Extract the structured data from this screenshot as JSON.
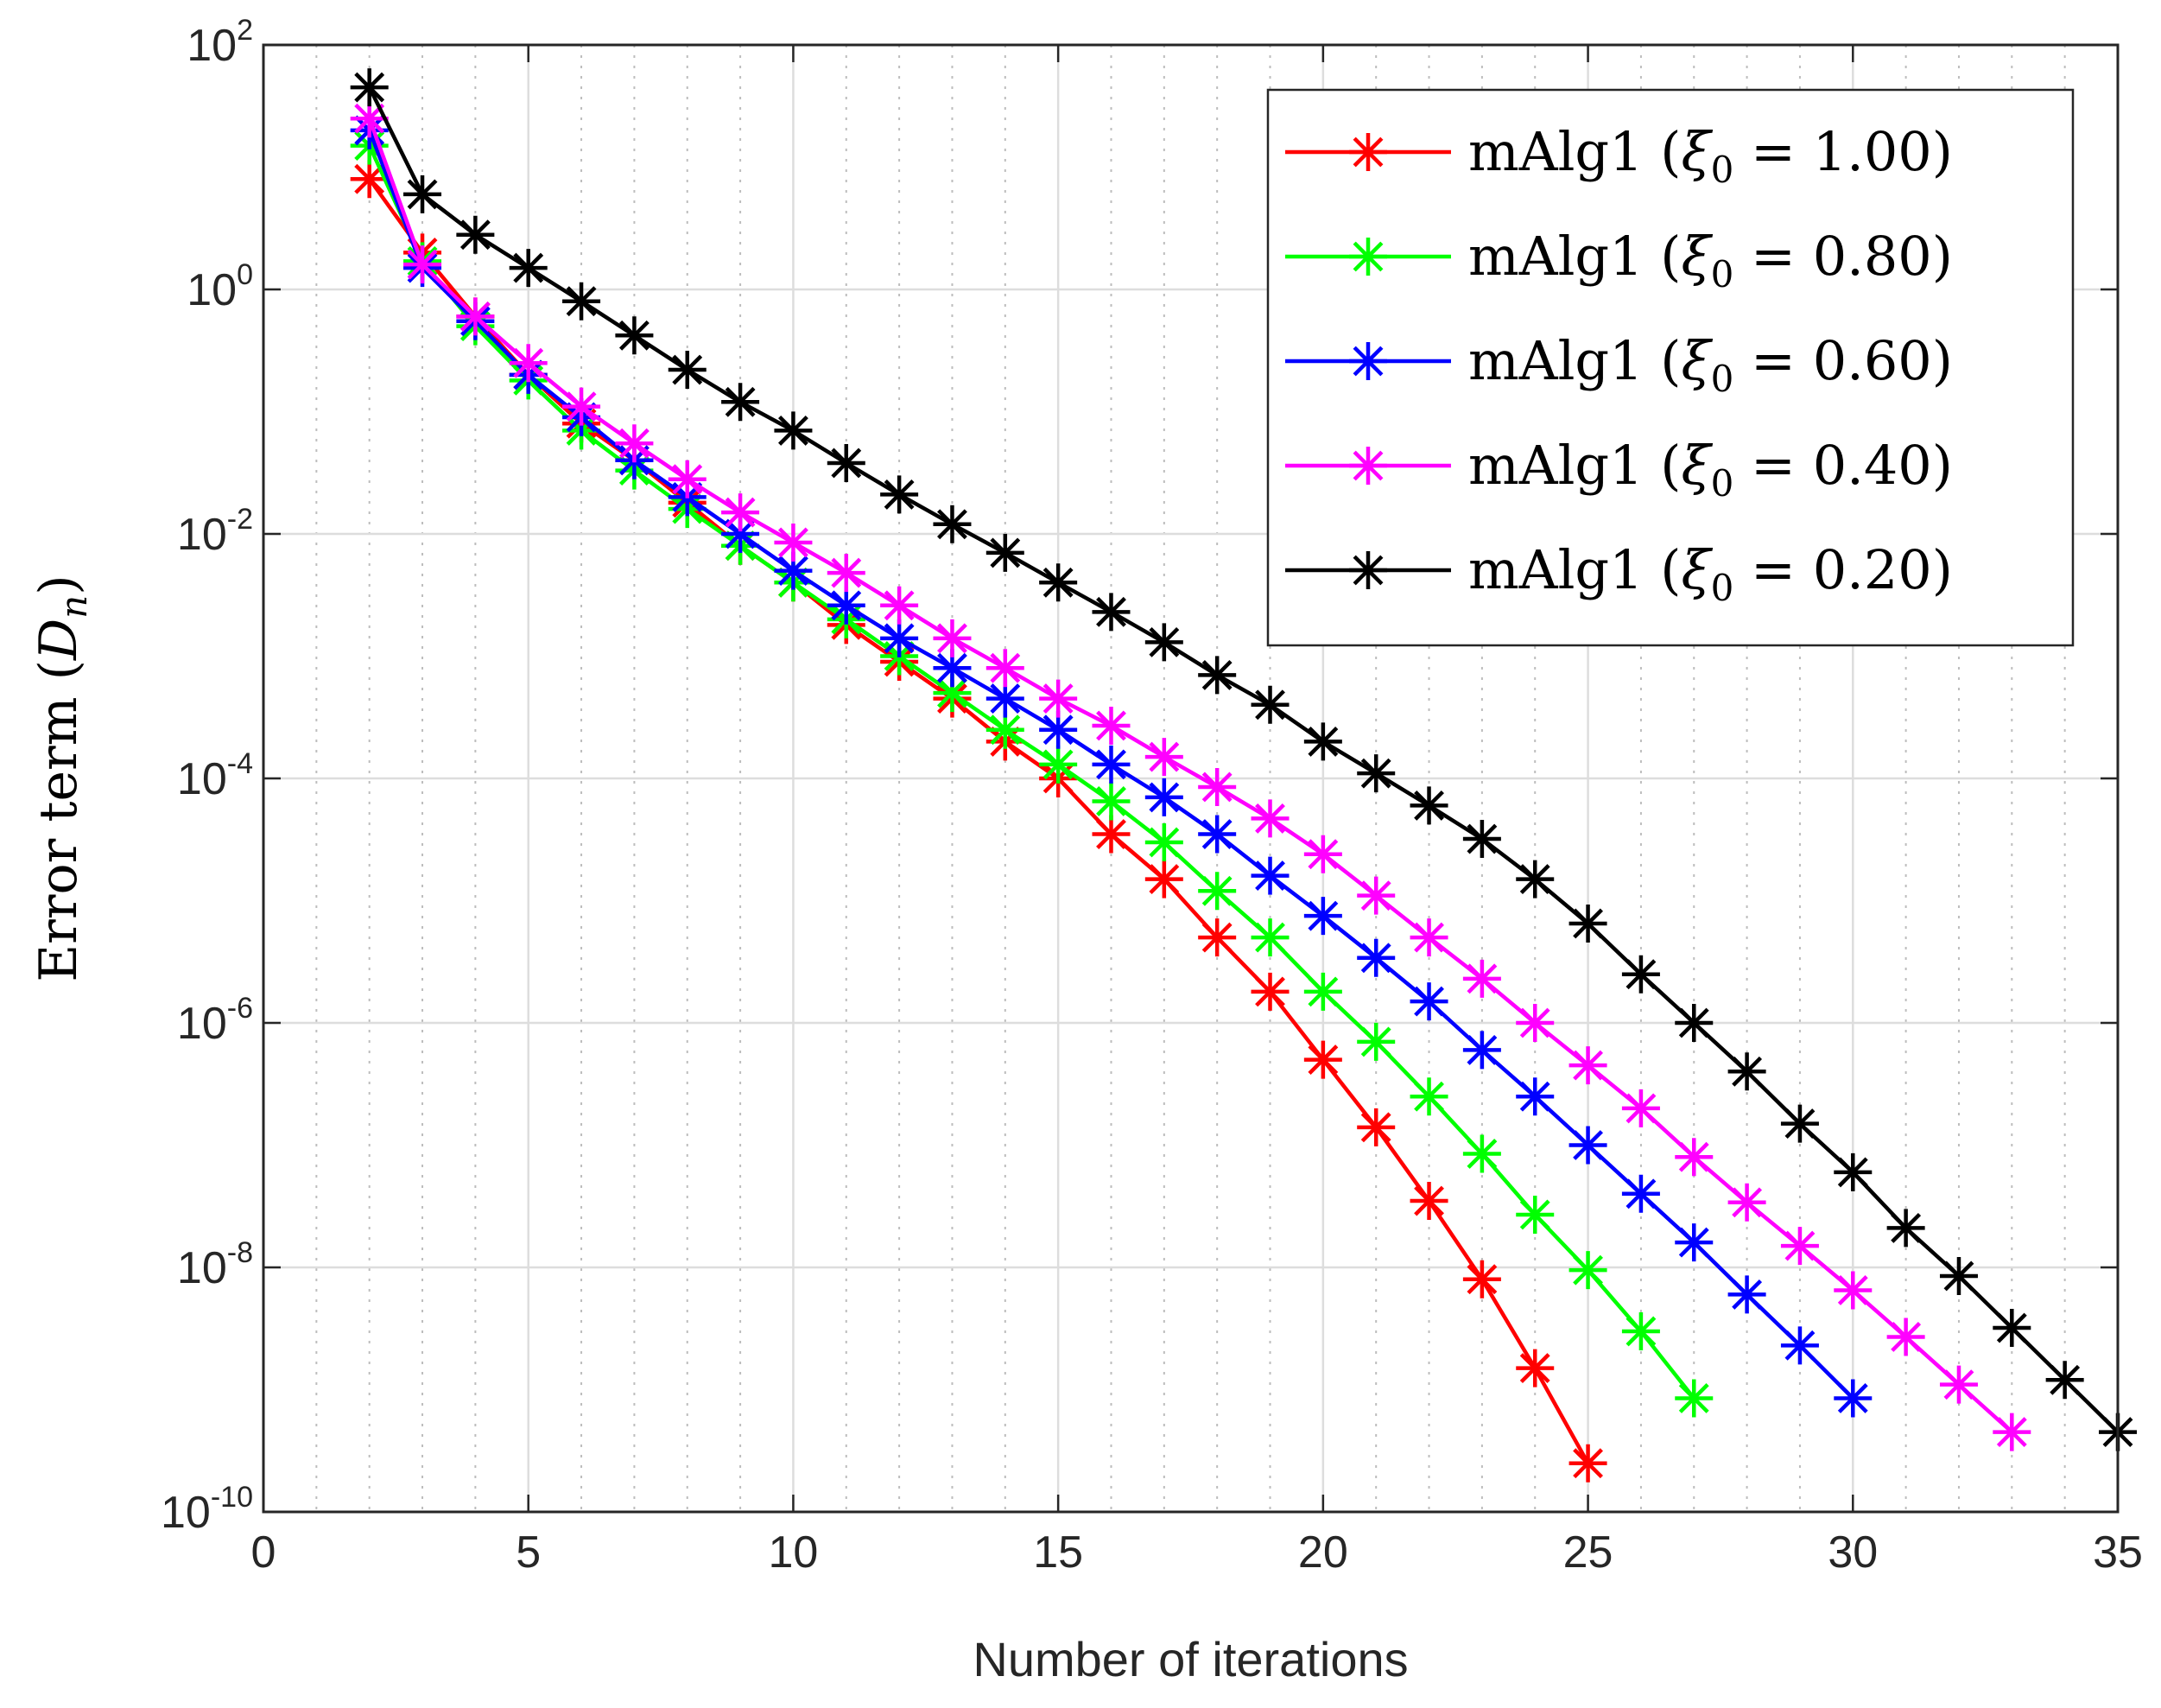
{
  "chart_data": {
    "type": "line",
    "xlabel": "Number of iterations",
    "ylabel": "Error term (D_n)",
    "ylabel_parts": {
      "prefix": "Error term (",
      "var": "D",
      "sub": "n",
      "suffix": ")"
    },
    "xlim": [
      0,
      35
    ],
    "ylim_log10": [
      -10,
      2
    ],
    "yscale": "log",
    "grid": true,
    "minor_grid_x": true,
    "x_ticks": [
      "0",
      "5",
      "10",
      "15",
      "20",
      "25",
      "30",
      "35"
    ],
    "y_ticks": [
      {
        "base": "10",
        "exp": "2"
      },
      {
        "base": "10",
        "exp": "0"
      },
      {
        "base": "10",
        "exp": "-2"
      },
      {
        "base": "10",
        "exp": "-4"
      },
      {
        "base": "10",
        "exp": "-6"
      },
      {
        "base": "10",
        "exp": "-8"
      },
      {
        "base": "10",
        "exp": "-10"
      }
    ],
    "legend_position": "top-right",
    "marker": "asterisk",
    "series": [
      {
        "name": "mAlg1 (ξ0 = 1.00)",
        "label_prefix": "mAlg1 (",
        "sym": "ξ",
        "sub": "0",
        "label_suffix": " = 1.00)",
        "color": "#ff0000",
        "x": [
          2,
          3,
          4,
          5,
          6,
          7,
          8,
          9,
          10,
          11,
          12,
          13,
          14,
          15,
          16,
          17,
          18,
          19,
          20,
          21,
          22,
          23,
          24,
          25
        ],
        "y": [
          8,
          2,
          0.6,
          0.2,
          0.08,
          0.04,
          0.018,
          0.008,
          0.004,
          0.0018,
          0.0009,
          0.00045,
          0.0002,
          0.0001,
          3.5e-05,
          1.5e-05,
          5e-06,
          1.8e-06,
          5e-07,
          1.4e-07,
          3.5e-08,
          8e-09,
          1.5e-09,
          2.5e-10
        ]
      },
      {
        "name": "mAlg1 (ξ0 = 0.80)",
        "label_prefix": "mAlg1 (",
        "sym": "ξ",
        "sub": "0",
        "label_suffix": " = 0.80)",
        "color": "#00ff00",
        "x": [
          2,
          3,
          4,
          5,
          6,
          7,
          8,
          9,
          10,
          11,
          12,
          13,
          14,
          15,
          16,
          17,
          18,
          19,
          20,
          21,
          22,
          23,
          24,
          25,
          26,
          27
        ],
        "y": [
          15,
          1.7,
          0.5,
          0.18,
          0.07,
          0.033,
          0.016,
          0.008,
          0.004,
          0.002,
          0.001,
          0.0005,
          0.00025,
          0.00013,
          6.5e-05,
          3e-05,
          1.2e-05,
          5e-06,
          1.8e-06,
          7e-07,
          2.5e-07,
          8.5e-08,
          2.7e-08,
          9.5e-09,
          3e-09,
          8.5e-10
        ]
      },
      {
        "name": "mAlg1 (ξ0 = 0.60)",
        "label_prefix": "mAlg1 (",
        "sym": "ξ",
        "sub": "0",
        "label_suffix": " = 0.60)",
        "color": "#0000ff",
        "x": [
          2,
          3,
          4,
          5,
          6,
          7,
          8,
          9,
          10,
          11,
          12,
          13,
          14,
          15,
          16,
          17,
          18,
          19,
          20,
          21,
          22,
          23,
          24,
          25,
          26,
          27,
          28,
          29,
          30
        ],
        "y": [
          20,
          1.5,
          0.55,
          0.2,
          0.09,
          0.04,
          0.02,
          0.01,
          0.005,
          0.0026,
          0.0014,
          0.0008,
          0.00045,
          0.00025,
          0.00013,
          7e-05,
          3.5e-05,
          1.6e-05,
          7.5e-06,
          3.4e-06,
          1.5e-06,
          6e-07,
          2.5e-07,
          1e-07,
          4e-08,
          1.6e-08,
          6e-09,
          2.3e-09,
          8.5e-10
        ]
      },
      {
        "name": "mAlg1 (ξ0 = 0.40)",
        "label_prefix": "mAlg1 (",
        "sym": "ξ",
        "sub": "0",
        "label_suffix": " = 0.40)",
        "color": "#ff00ff",
        "x": [
          2,
          3,
          4,
          5,
          6,
          7,
          8,
          9,
          10,
          11,
          12,
          13,
          14,
          15,
          16,
          17,
          18,
          19,
          20,
          21,
          22,
          23,
          24,
          25,
          26,
          27,
          28,
          29,
          30,
          31,
          32,
          33
        ],
        "y": [
          25,
          1.6,
          0.6,
          0.25,
          0.11,
          0.055,
          0.028,
          0.015,
          0.0085,
          0.0048,
          0.0026,
          0.0014,
          0.0008,
          0.00045,
          0.00027,
          0.00015,
          8.5e-05,
          4.7e-05,
          2.4e-05,
          1.1e-05,
          5e-06,
          2.3e-06,
          1e-06,
          4.5e-07,
          2e-07,
          8e-08,
          3.4e-08,
          1.5e-08,
          6.5e-09,
          2.7e-09,
          1.1e-09,
          4.5e-10
        ]
      },
      {
        "name": "mAlg1 (ξ0 = 0.20)",
        "label_prefix": "mAlg1 (",
        "sym": "ξ",
        "sub": "0",
        "label_suffix": " = 0.20)",
        "color": "#000000",
        "x": [
          2,
          3,
          4,
          5,
          6,
          7,
          8,
          9,
          10,
          11,
          12,
          13,
          14,
          15,
          16,
          17,
          18,
          19,
          20,
          21,
          22,
          23,
          24,
          25,
          26,
          27,
          28,
          29,
          30,
          31,
          32,
          33,
          34,
          35
        ],
        "y": [
          45,
          6,
          2.8,
          1.5,
          0.8,
          0.42,
          0.22,
          0.12,
          0.07,
          0.038,
          0.021,
          0.012,
          0.007,
          0.004,
          0.0023,
          0.0013,
          0.0007,
          0.0004,
          0.0002,
          0.00011,
          6e-05,
          3.2e-05,
          1.5e-05,
          6.5e-06,
          2.5e-06,
          1e-06,
          4e-07,
          1.5e-07,
          6e-08,
          2.1e-08,
          8.5e-09,
          3.2e-09,
          1.2e-09,
          4.5e-10
        ]
      }
    ]
  }
}
